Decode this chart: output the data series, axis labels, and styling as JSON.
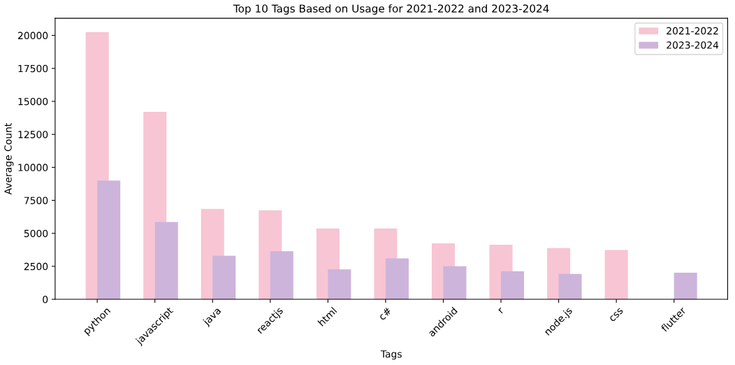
{
  "chart_data": {
    "type": "bar",
    "title": "Top 10 Tags Based on Usage for 2021-2022 and 2023-2024",
    "xlabel": "Tags",
    "ylabel": "Average Count",
    "categories": [
      "python",
      "javascript",
      "java",
      "reactjs",
      "html",
      "c#",
      "android",
      "r",
      "node.js",
      "css",
      "flutter"
    ],
    "series": [
      {
        "name": "2021-2022",
        "color": "#f7c5d3",
        "values": [
          20250,
          14200,
          6850,
          6750,
          5370,
          5370,
          4240,
          4140,
          3890,
          3740,
          null
        ]
      },
      {
        "name": "2023-2024",
        "color": "#cdb4db",
        "values": [
          9000,
          5860,
          3300,
          3650,
          2270,
          3100,
          2510,
          2120,
          1920,
          null,
          2020
        ]
      }
    ],
    "ylim": [
      0,
      21300
    ],
    "yticks": [
      0,
      2500,
      5000,
      7500,
      10000,
      12500,
      15000,
      17500,
      20000
    ],
    "legend": "top right",
    "grid": false
  }
}
